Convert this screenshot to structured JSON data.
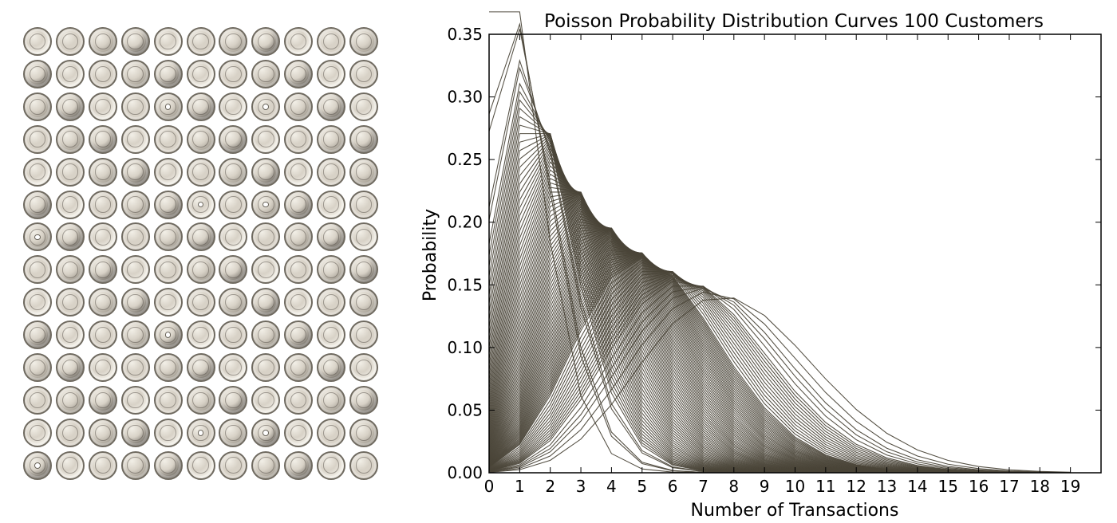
{
  "figure": {
    "left_panel": {
      "type": "image-grid",
      "rows": 14,
      "columns": 11,
      "holed_coins": [
        [
          2,
          4
        ],
        [
          2,
          7
        ],
        [
          5,
          5
        ],
        [
          5,
          7
        ],
        [
          6,
          0
        ],
        [
          9,
          4
        ],
        [
          12,
          5
        ],
        [
          12,
          7
        ],
        [
          13,
          0
        ]
      ],
      "coin_tones": [
        "#f2efe7",
        "#d8d2c7",
        "#a59f94",
        "#77726a"
      ]
    },
    "chart_data": {
      "type": "line",
      "title": "Poisson Probability Distribution Curves 100 Customers",
      "xlabel": "Number of Transactions",
      "ylabel": "Probability",
      "x_ticks": [
        0,
        1,
        2,
        3,
        4,
        5,
        6,
        7,
        8,
        9,
        10,
        11,
        12,
        13,
        14,
        15,
        16,
        17,
        18,
        19
      ],
      "y_ticks": [
        "0.00",
        "0.05",
        "0.10",
        "0.15",
        "0.20",
        "0.25",
        "0.30",
        "0.35"
      ],
      "xlim": [
        0,
        20
      ],
      "ylim": [
        0,
        0.35
      ],
      "grid": false,
      "legend": false,
      "x": [
        0,
        1,
        2,
        3,
        4,
        5,
        6,
        7,
        8,
        9,
        10,
        11,
        12,
        13,
        14,
        15,
        16,
        17,
        18,
        19
      ],
      "line_color": "#4a4438",
      "lambda_values": [
        1.0,
        1.25,
        1.3,
        1.55,
        1.6,
        1.7,
        1.75,
        1.8,
        1.85,
        1.9,
        1.95,
        2.0,
        2.05,
        2.1,
        2.15,
        2.2,
        2.25,
        2.3,
        2.35,
        2.4,
        2.45,
        2.5,
        2.55,
        2.6,
        2.65,
        2.7,
        2.75,
        2.8,
        2.85,
        2.9,
        2.95,
        3.0,
        3.05,
        3.1,
        3.15,
        3.2,
        3.25,
        3.3,
        3.35,
        3.4,
        3.45,
        3.5,
        3.55,
        3.6,
        3.65,
        3.7,
        3.75,
        3.8,
        3.85,
        3.9,
        3.95,
        4.0,
        4.05,
        4.1,
        4.15,
        4.2,
        4.25,
        4.3,
        4.35,
        4.4,
        4.45,
        4.5,
        4.55,
        4.6,
        4.65,
        4.7,
        4.75,
        4.8,
        4.85,
        4.9,
        4.95,
        5.0,
        5.05,
        5.1,
        5.15,
        5.2,
        5.25,
        5.3,
        5.35,
        5.4,
        5.45,
        5.5,
        5.6,
        5.7,
        5.8,
        5.9,
        6.0,
        6.1,
        6.2,
        6.3,
        6.4,
        6.5,
        6.6,
        6.7,
        6.8,
        7.0,
        7.2,
        7.4,
        7.7,
        8.1
      ]
    }
  }
}
